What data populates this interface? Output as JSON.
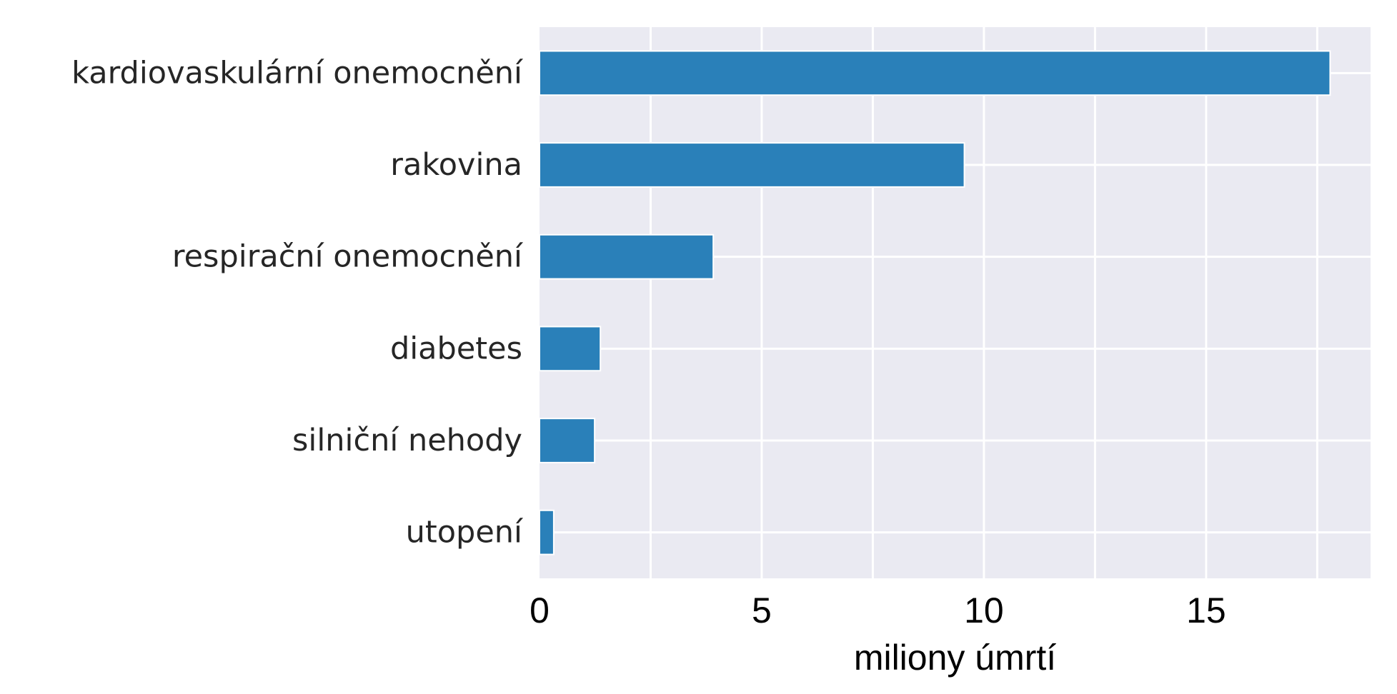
{
  "chart_data": {
    "type": "bar",
    "orientation": "horizontal",
    "categories": [
      "kardiovaskulární onemocnění",
      "rakovina",
      "respirační onemocnění",
      "diabetes",
      "silniční nehody",
      "utopení"
    ],
    "values": [
      17.79,
      9.56,
      3.91,
      1.37,
      1.24,
      0.32
    ],
    "xlabel": "miliony úmrtí",
    "ylabel": "",
    "title": "",
    "xlim": [
      0,
      18.7
    ],
    "xticks": [
      0,
      5,
      10,
      15
    ],
    "grid": true,
    "legend": "none"
  },
  "colors": {
    "bar": "#2a80b9",
    "plot_background": "#eaeaf2",
    "grid": "#ffffff",
    "category_text": "#262626",
    "tick_text": "#000000"
  }
}
